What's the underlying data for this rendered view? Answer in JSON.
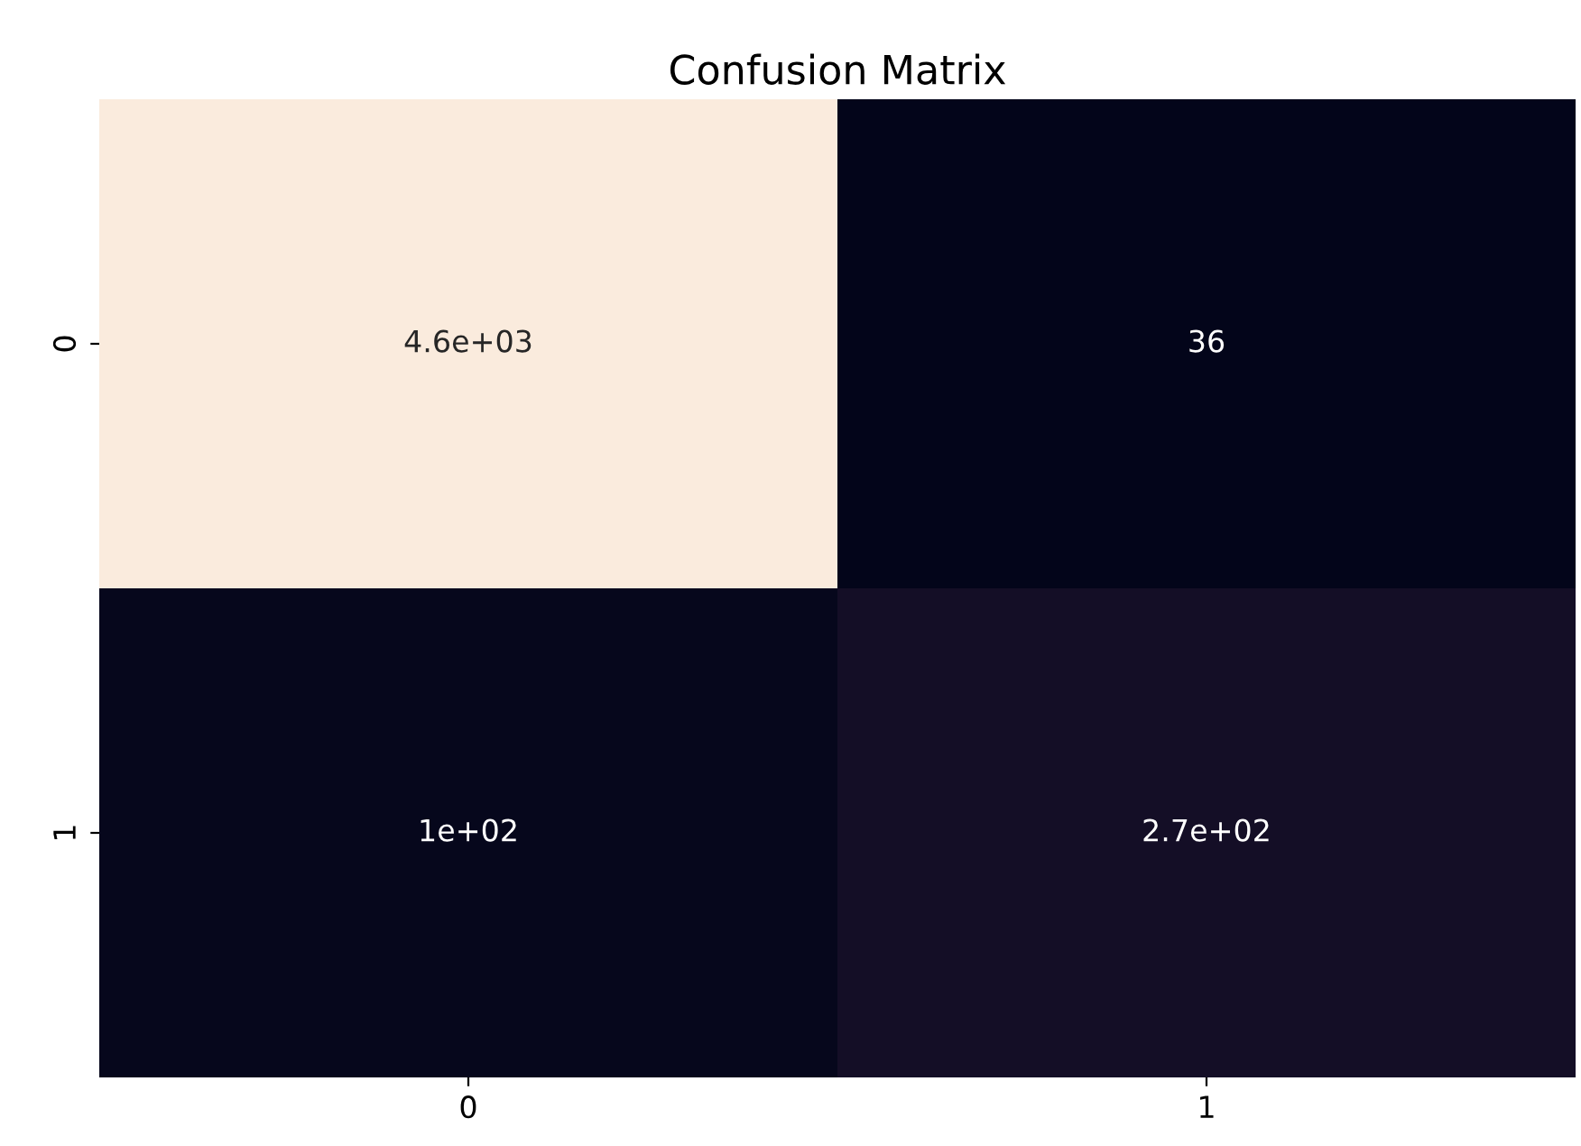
{
  "chart_data": {
    "type": "heatmap",
    "title": "Confusion Matrix",
    "categories": [
      "0",
      "1"
    ],
    "y_categories": [
      "0",
      "1"
    ],
    "cells": [
      [
        4600,
        36
      ],
      [
        100,
        270
      ]
    ],
    "cell_labels": [
      [
        "4.6e+03",
        "36"
      ],
      [
        "1e+02",
        "2.7e+02"
      ]
    ],
    "grid": false
  }
}
